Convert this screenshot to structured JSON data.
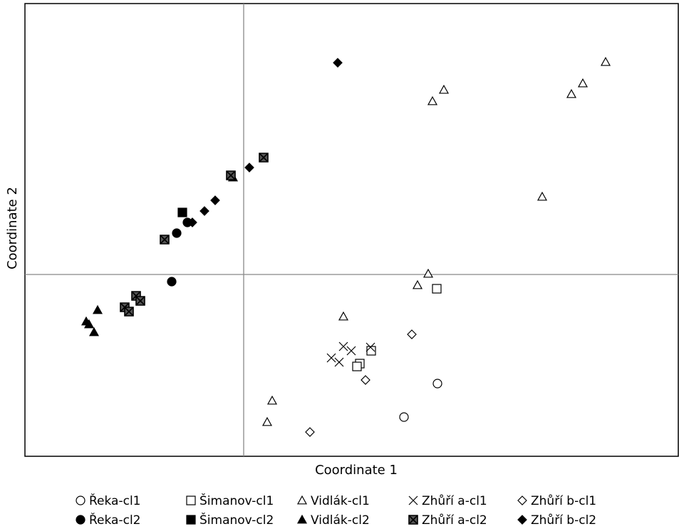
{
  "chart_data": {
    "type": "scatter",
    "x_label": "Coordinate 1",
    "y_label": "Coordinate 2",
    "xlim": [
      -3.07,
      6.1
    ],
    "ylim": [
      -2.55,
      3.8
    ],
    "zero_lines": true,
    "series": [
      {
        "name": "Řeka-cl1",
        "color": "#000000",
        "marker": "circle",
        "filled": false,
        "x": [
          2.72,
          2.25
        ],
        "values": [
          -1.53,
          -2.0
        ]
      },
      {
        "name": "Řeka-cl2",
        "color": "#000000",
        "marker": "circle",
        "filled": true,
        "x": [
          -0.94,
          -0.79,
          -1.01
        ],
        "values": [
          0.58,
          0.73,
          -0.1
        ]
      },
      {
        "name": "Šimanov-cl1",
        "color": "#000000",
        "marker": "square",
        "filled": false,
        "x": [
          2.71,
          1.79,
          1.63,
          1.59
        ],
        "values": [
          -0.2,
          -1.07,
          -1.25,
          -1.29
        ]
      },
      {
        "name": "Šimanov-cl2",
        "color": "#000000",
        "marker": "square",
        "filled": true,
        "x": [
          -0.86
        ],
        "values": [
          0.87
        ]
      },
      {
        "name": "Vidlák-cl1",
        "color": "#000000",
        "marker": "triangle",
        "filled": false,
        "x": [
          5.08,
          4.76,
          4.6,
          2.81,
          2.65,
          4.19,
          2.59,
          2.44,
          1.4,
          0.4,
          0.33
        ],
        "values": [
          2.98,
          2.68,
          2.53,
          2.59,
          2.43,
          1.09,
          0.01,
          -0.15,
          -0.59,
          -1.77,
          -2.07
        ]
      },
      {
        "name": "Vidlák-cl2",
        "color": "#000000",
        "marker": "triangle",
        "filled": true,
        "x": [
          -0.15,
          -2.05,
          -2.21,
          -2.17,
          -2.1
        ],
        "values": [
          1.36,
          -0.5,
          -0.66,
          -0.7,
          -0.81
        ]
      },
      {
        "name": "Zhůří a-cl1",
        "color": "#000000",
        "marker": "x",
        "filled": false,
        "x": [
          1.23,
          1.34,
          1.4,
          1.51,
          1.78
        ],
        "values": [
          -1.17,
          -1.23,
          -1.01,
          -1.07,
          -1.02
        ]
      },
      {
        "name": "Zhůří a-cl2",
        "color": "#000000",
        "marker": "boxed-x",
        "filled": true,
        "x": [
          0.28,
          -0.18,
          -1.11,
          -1.51,
          -1.45,
          -1.67,
          -1.61
        ],
        "values": [
          1.64,
          1.39,
          0.49,
          -0.3,
          -0.37,
          -0.46,
          -0.52
        ]
      },
      {
        "name": "Zhůří b-cl1",
        "color": "#000000",
        "marker": "diamond",
        "filled": false,
        "x": [
          2.36,
          1.71,
          0.93
        ],
        "values": [
          -0.84,
          -1.48,
          -2.21
        ]
      },
      {
        "name": "Zhůří b-cl2",
        "color": "#000000",
        "marker": "diamond",
        "filled": true,
        "x": [
          1.32,
          0.08,
          -0.4,
          -0.55,
          -0.72
        ],
        "values": [
          2.97,
          1.5,
          1.04,
          0.89,
          0.73
        ]
      }
    ]
  }
}
